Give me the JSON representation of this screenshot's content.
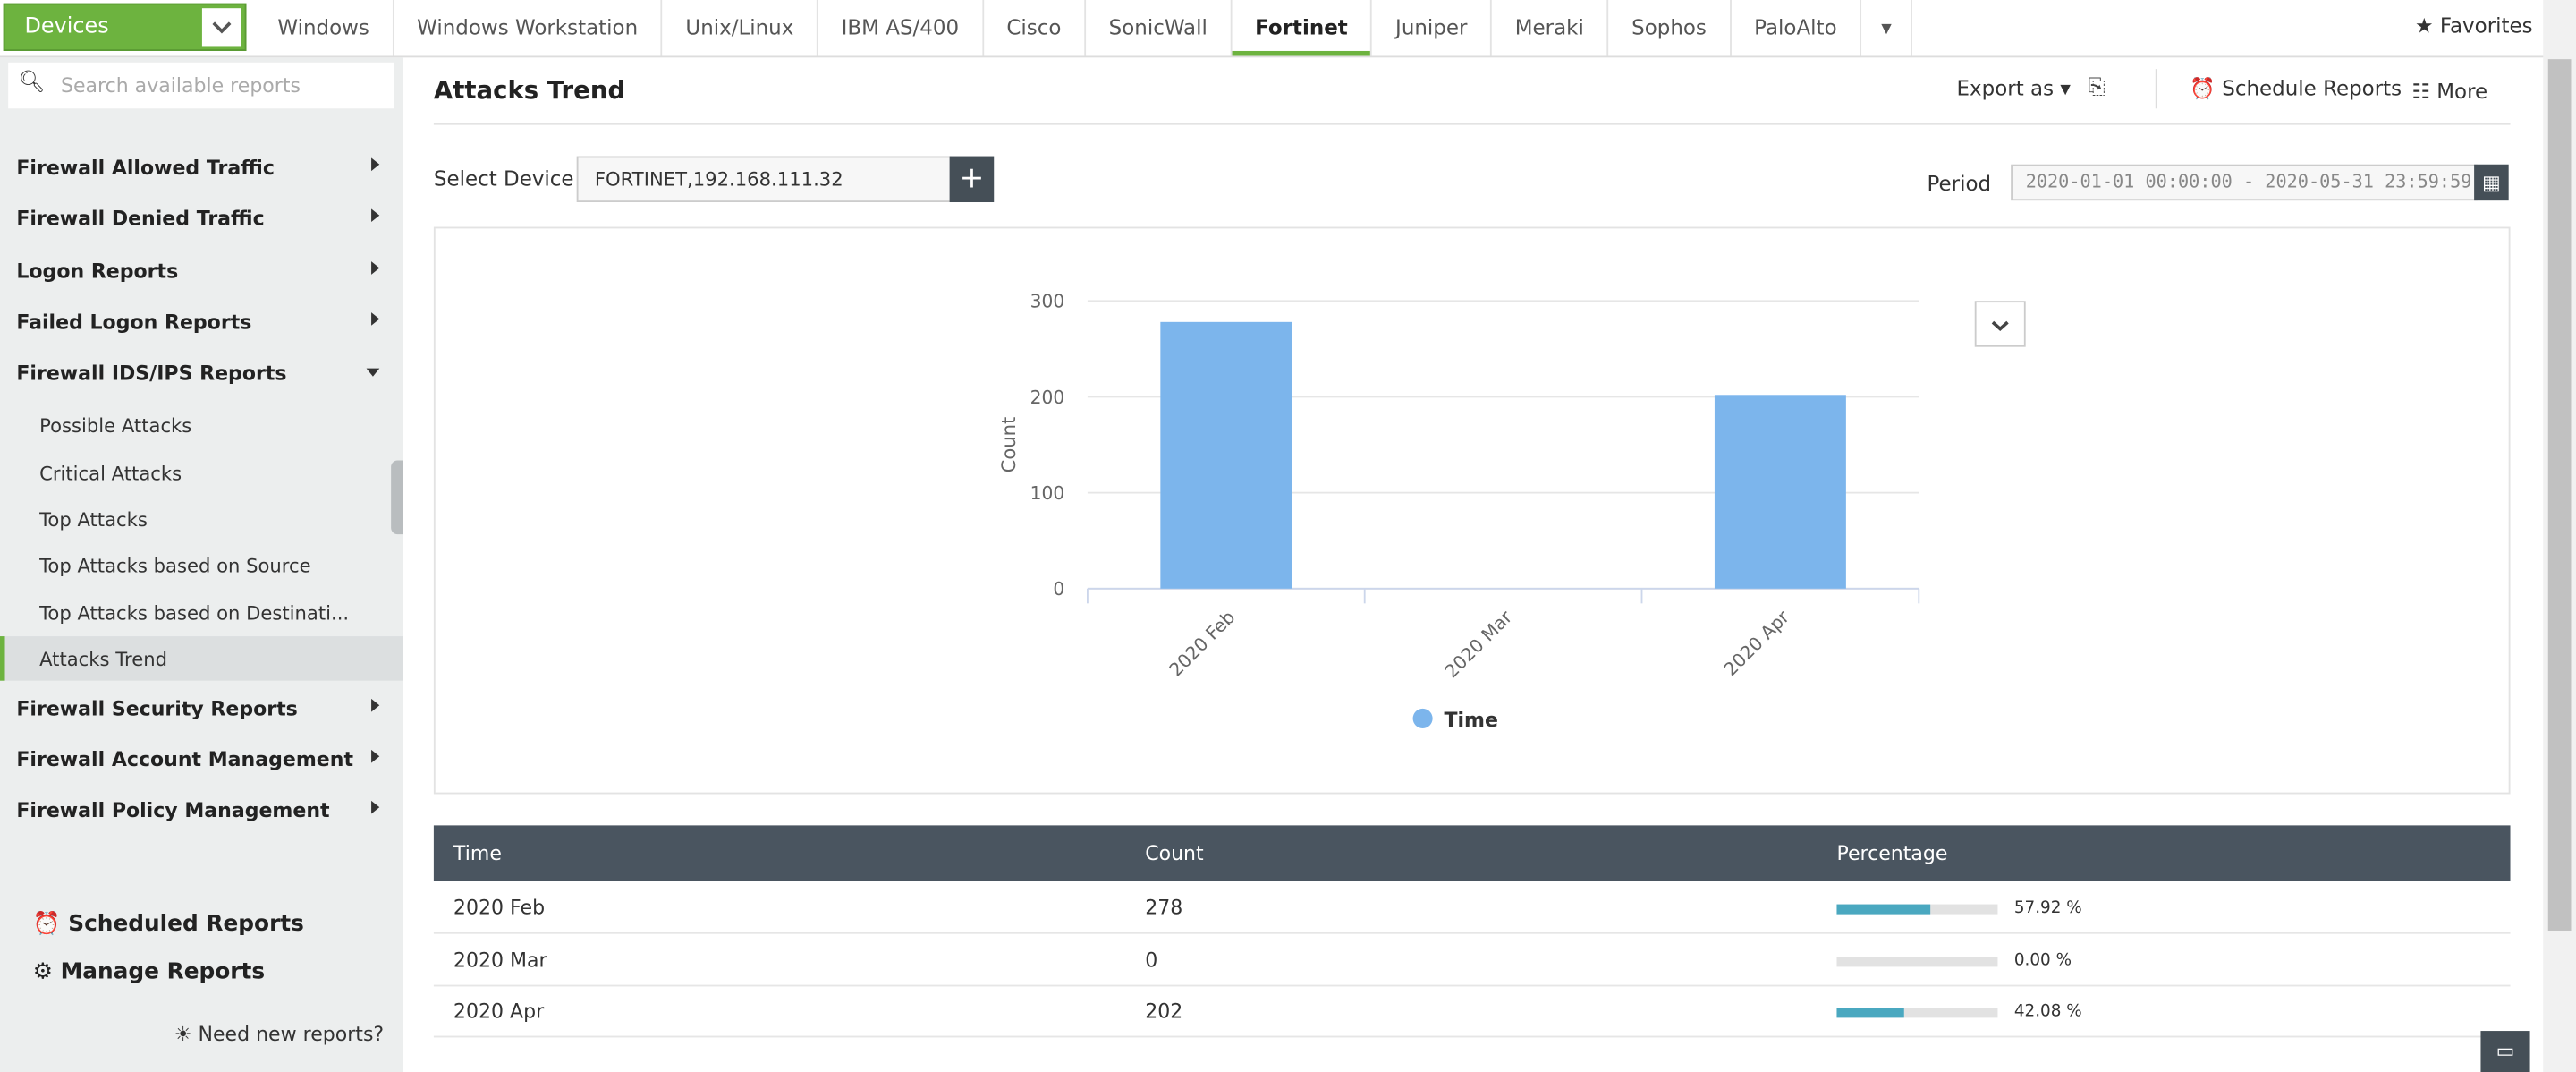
{
  "top_bar": {
    "devices": "Devices",
    "tabs": [
      "Windows",
      "Windows Workstation",
      "Unix/Linux",
      "IBM AS/400",
      "Cisco",
      "SonicWall",
      "Fortinet",
      "Juniper",
      "Meraki",
      "Sophos",
      "PaloAlto"
    ],
    "favorites": "Favorites"
  },
  "sidebar": {
    "search_placeholder": "Search available reports",
    "groups": [
      "Firewall Allowed Traffic",
      "Firewall Denied Traffic",
      "Logon Reports",
      "Failed Logon Reports",
      "Firewall IDS/IPS Reports"
    ],
    "expanded_items": [
      "Possible Attacks",
      "Critical Attacks",
      "Top Attacks",
      "Top Attacks based on Source",
      "Top Attacks based on Destinati...",
      "Attacks Trend"
    ],
    "groups_after": [
      "Firewall Security Reports",
      "Firewall Account Management",
      "Firewall Policy Management"
    ],
    "scheduled": "Scheduled Reports",
    "manage": "Manage Reports",
    "need_new": "Need new reports?"
  },
  "header": {
    "title": "Attacks Trend",
    "export": "Export as",
    "schedule": "Schedule Reports",
    "more": "More"
  },
  "filters": {
    "select_device_label": "Select Device",
    "device": "FORTINET,192.168.111.32",
    "period_label": "Period",
    "period": "2020-01-01 00:00:00 - 2020-05-31 23:59:59"
  },
  "chart_data": {
    "type": "bar",
    "ylabel": "Count",
    "categories": [
      "2020 Feb",
      "2020 Mar",
      "2020 Apr"
    ],
    "series": [
      {
        "name": "Time",
        "color": "#7cb5ec",
        "values": [
          278,
          0,
          202
        ]
      }
    ],
    "ylim": [
      0,
      300
    ],
    "yticks": [
      0,
      100,
      200,
      300
    ],
    "grid": true
  },
  "table": {
    "columns": [
      "Time",
      "Count",
      "Percentage"
    ],
    "rows": [
      [
        "2020 Feb",
        "278",
        {
          "value": 57.92,
          "label": "57.92 %"
        }
      ],
      [
        "2020 Mar",
        "0",
        {
          "value": 0,
          "label": "0.00 %"
        }
      ],
      [
        "2020 Apr",
        "202",
        {
          "value": 42.08,
          "label": "42.08 %"
        }
      ]
    ]
  }
}
